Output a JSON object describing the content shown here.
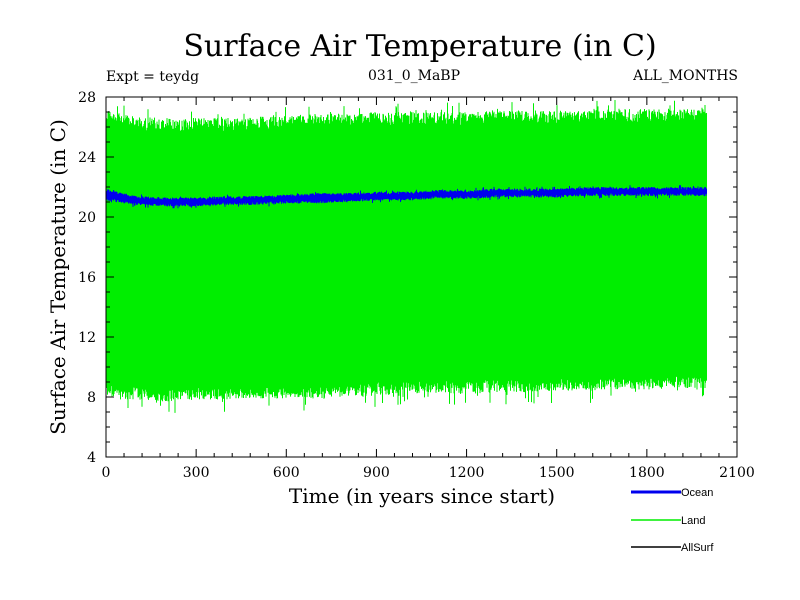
{
  "chart_data": {
    "type": "line",
    "title": "Surface Air Temperature (in C)",
    "subtitle_left": "Expt = teydg",
    "subtitle_center": "031_0_MaBP",
    "subtitle_right": "ALL_MONTHS",
    "xlabel": "Time (in years since start)",
    "ylabel": "Surface Air Temperature (in C)",
    "xlim": [
      0,
      2100
    ],
    "ylim": [
      4,
      28
    ],
    "xticks": [
      0,
      300,
      600,
      900,
      1200,
      1500,
      1800,
      2100
    ],
    "yticks": [
      4,
      8,
      12,
      16,
      20,
      24,
      28
    ],
    "x_range": [
      0,
      2000
    ],
    "series": [
      {
        "name": "Land",
        "color": "#00ee00",
        "style": "seasonal band",
        "x": [
          0,
          100,
          200,
          300,
          400,
          500,
          600,
          700,
          800,
          900,
          1000,
          1100,
          1200,
          1300,
          1400,
          1500,
          1600,
          1700,
          1800,
          1900,
          2000
        ],
        "upper": [
          27.2,
          26.7,
          26.6,
          26.6,
          26.6,
          26.7,
          26.8,
          26.9,
          26.9,
          27.0,
          27.0,
          27.0,
          27.0,
          27.1,
          27.1,
          27.1,
          27.1,
          27.2,
          27.2,
          27.2,
          27.2
        ],
        "lower": [
          8.0,
          7.8,
          7.7,
          7.8,
          7.8,
          7.9,
          7.9,
          7.9,
          8.0,
          8.1,
          8.2,
          8.2,
          8.2,
          8.3,
          8.3,
          8.4,
          8.4,
          8.5,
          8.5,
          8.6,
          8.6
        ]
      },
      {
        "name": "Ocean",
        "color": "#0000ee",
        "style": "seasonal band",
        "x": [
          0,
          100,
          200,
          300,
          400,
          500,
          600,
          700,
          800,
          900,
          1000,
          1100,
          1200,
          1300,
          1400,
          1500,
          1600,
          1700,
          1800,
          1900,
          2000
        ],
        "upper": [
          21.9,
          21.4,
          21.3,
          21.3,
          21.4,
          21.4,
          21.5,
          21.6,
          21.6,
          21.7,
          21.7,
          21.8,
          21.8,
          21.9,
          21.9,
          21.9,
          22.0,
          22.0,
          22.0,
          22.0,
          22.0
        ],
        "lower": [
          21.1,
          20.8,
          20.7,
          20.7,
          20.8,
          20.8,
          20.9,
          20.9,
          21.0,
          21.1,
          21.1,
          21.2,
          21.2,
          21.3,
          21.3,
          21.3,
          21.4,
          21.4,
          21.4,
          21.4,
          21.4
        ]
      },
      {
        "name": "AllSurf",
        "color": "#000000",
        "style": "line",
        "x": [],
        "values": []
      }
    ],
    "legend": [
      {
        "label": "Ocean",
        "color": "#0000ee"
      },
      {
        "label": "Land",
        "color": "#00ee00"
      },
      {
        "label": "AllSurf",
        "color": "#000000"
      }
    ],
    "legend_position": "bottom-right"
  }
}
